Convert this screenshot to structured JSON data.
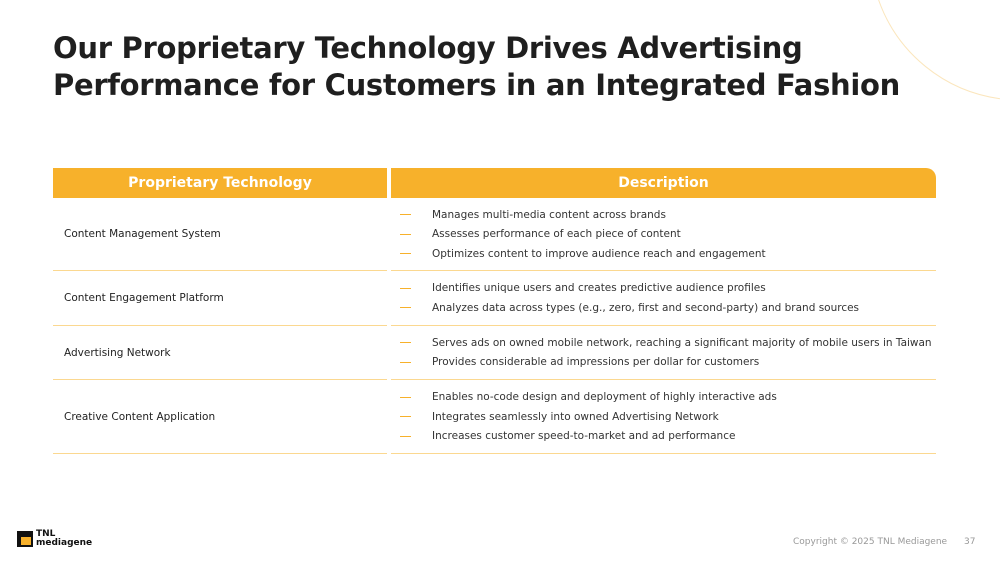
{
  "title": "Our Proprietary Technology Drives Advertising Performance for Customers in an Integrated Fashion",
  "table": {
    "headers": [
      "Proprietary Technology",
      "Description"
    ],
    "rows": [
      {
        "name": "Content Management System",
        "bullets": [
          "Manages multi-media content across brands",
          "Assesses performance of each piece of content",
          "Optimizes content to improve audience reach and engagement"
        ]
      },
      {
        "name": "Content Engagement Platform",
        "bullets": [
          "Identifies unique users and creates predictive audience profiles",
          "Analyzes data across types (e.g., zero, first and second-party) and brand sources"
        ]
      },
      {
        "name": "Advertising Network",
        "bullets": [
          "Serves ads on owned mobile network, reaching a significant majority of mobile users in Taiwan",
          "Provides considerable ad impressions per dollar for customers"
        ]
      },
      {
        "name": "Creative Content Application",
        "bullets": [
          "Enables no-code design and deployment of highly interactive ads",
          "Integrates seamlessly into owned Advertising Network",
          "Increases customer speed-to-market and ad performance"
        ]
      }
    ]
  },
  "footer": {
    "logo_line1": "TNL",
    "logo_line2": "mediagene",
    "copyright": "Copyright © 2025 TNL Mediagene",
    "page": "37"
  },
  "colors": {
    "accent": "#f7b12b"
  }
}
